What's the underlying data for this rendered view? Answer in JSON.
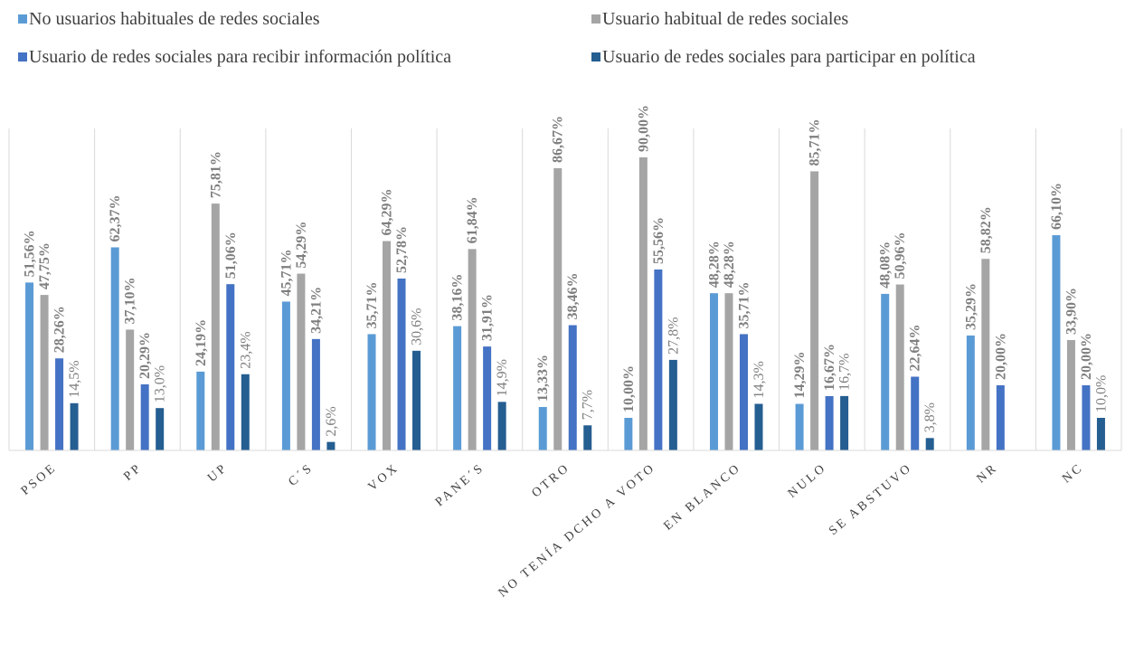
{
  "chart_data": {
    "type": "bar",
    "categories": [
      "PSOE",
      "PP",
      "UP",
      "C´S",
      "VOX",
      "PANE´S",
      "OTRO",
      "NO TENÍA DCHO A VOTO",
      "EN BLANCO",
      "NULO",
      "SE ABSTUVO",
      "NR",
      "NC"
    ],
    "series": [
      {
        "name": "No usuarios habituales de redes sociales",
        "color": "#5b9bd5",
        "values": [
          51.56,
          62.37,
          24.19,
          45.71,
          35.71,
          38.16,
          13.33,
          10.0,
          48.28,
          14.29,
          48.08,
          35.29,
          66.1
        ],
        "labels": [
          "51,56%",
          "62,37%",
          "24,19%",
          "45,71%",
          "35,71%",
          "38,16%",
          "13,33%",
          "10,00%",
          "48,28%",
          "14,29%",
          "48,08%",
          "35,29%",
          "66,10%"
        ]
      },
      {
        "name": "Usuario habitual de redes sociales",
        "color": "#a5a5a5",
        "values": [
          47.75,
          37.1,
          75.81,
          54.29,
          64.29,
          61.84,
          86.67,
          90.0,
          48.28,
          85.71,
          50.96,
          58.82,
          33.9
        ],
        "labels": [
          "47,75%",
          "37,10%",
          "75,81%",
          "54,29%",
          "64,29%",
          "61,84%",
          "86,67%",
          "90,00%",
          "48,28%",
          "85,71%",
          "50,96%",
          "58,82%",
          "33,90%"
        ]
      },
      {
        "name": "Usuario de redes sociales para recibir información política",
        "color": "#4472c4",
        "values": [
          28.26,
          20.29,
          51.06,
          34.21,
          52.78,
          31.91,
          38.46,
          55.56,
          35.71,
          16.67,
          22.64,
          20.0,
          20.0
        ],
        "labels": [
          "28,26%",
          "20,29%",
          "51,06%",
          "34,21%",
          "52,78%",
          "31,91%",
          "38,46%",
          "55,56%",
          "35,71%",
          "16,67%",
          "22,64%",
          "20,00%",
          "20,00%"
        ]
      },
      {
        "name": "Usuario de redes sociales para participar en política",
        "color": "#255e91",
        "values": [
          14.5,
          13.0,
          23.4,
          2.6,
          30.6,
          14.9,
          7.7,
          27.8,
          14.3,
          16.7,
          3.8,
          null,
          10.0
        ],
        "labels": [
          "14,5%",
          "13,0%",
          "23,4%",
          "2,6%",
          "30,6%",
          "14,9%",
          "7,7%",
          "27,8%",
          "14,3%",
          "16,7%",
          "3,8%",
          "",
          "10,0%"
        ]
      }
    ],
    "ylim": [
      0,
      100
    ],
    "grid": false,
    "category_separators": true,
    "legend": "top"
  }
}
